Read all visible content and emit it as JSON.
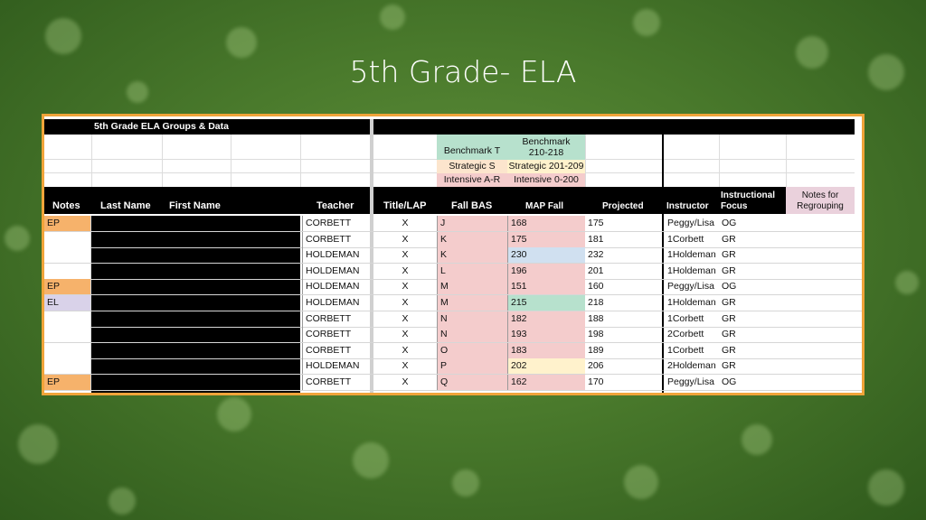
{
  "slide_title": "5th Grade- ELA",
  "sheet": {
    "banner_title": "5th Grade ELA Groups & Data",
    "legend": {
      "benchmark_label": "Benchmark T",
      "benchmark_range": "Benchmark 210-218",
      "strategic_label": "Strategic S",
      "strategic_range": "Strategic 201-209",
      "intensive_label": "Intensive A-R",
      "intensive_range": "Intensive 0-200"
    },
    "headers": {
      "notes": "Notes",
      "last_name": "Last Name",
      "first_name": "First Name",
      "teacher": "Teacher",
      "title_lap": "Title/LAP",
      "fall_bas": "Fall BAS",
      "map_fall": "MAP Fall",
      "projected": "Projected",
      "instructor": "Instructor",
      "instructional_focus": "Instructional Focus",
      "notes_regrouping": "Notes for Regrouping"
    },
    "rows": [
      {
        "notes": "EP",
        "teacher": "CORBETT",
        "title": "X",
        "bas": "J",
        "map": "168",
        "projected": "175",
        "instructor": "Peggy/Lisa",
        "focus": "OG"
      },
      {
        "notes": "",
        "teacher": "CORBETT",
        "title": "X",
        "bas": "K",
        "map": "175",
        "projected": "181",
        "instructor": "1Corbett",
        "focus": "GR"
      },
      {
        "notes": "",
        "teacher": "HOLDEMAN",
        "title": "X",
        "bas": "K",
        "map": "230",
        "projected": "232",
        "instructor": "1Holdeman",
        "focus": "GR"
      },
      {
        "notes": "",
        "teacher": "HOLDEMAN",
        "title": "X",
        "bas": "L",
        "map": "196",
        "projected": "201",
        "instructor": "1Holdeman",
        "focus": "GR"
      },
      {
        "notes": "EP",
        "teacher": "HOLDEMAN",
        "title": "X",
        "bas": "M",
        "map": "151",
        "projected": "160",
        "instructor": "Peggy/Lisa",
        "focus": "OG"
      },
      {
        "notes": "EL",
        "teacher": "HOLDEMAN",
        "title": "X",
        "bas": "M",
        "map": "215",
        "projected": "218",
        "instructor": "1Holdeman",
        "focus": "GR"
      },
      {
        "notes": "",
        "teacher": "CORBETT",
        "title": "X",
        "bas": "N",
        "map": "182",
        "projected": "188",
        "instructor": "1Corbett",
        "focus": "GR"
      },
      {
        "notes": "",
        "teacher": "CORBETT",
        "title": "X",
        "bas": "N",
        "map": "193",
        "projected": "198",
        "instructor": "2Corbett",
        "focus": "GR"
      },
      {
        "notes": "",
        "teacher": "CORBETT",
        "title": "X",
        "bas": "O",
        "map": "183",
        "projected": "189",
        "instructor": "1Corbett",
        "focus": "GR"
      },
      {
        "notes": "",
        "teacher": "HOLDEMAN",
        "title": "X",
        "bas": "P",
        "map": "202",
        "projected": "206",
        "instructor": "2Holdeman",
        "focus": "GR"
      },
      {
        "notes": "EP",
        "teacher": "CORBETT",
        "title": "X",
        "bas": "Q",
        "map": "162",
        "projected": "170",
        "instructor": "Peggy/Lisa",
        "focus": "OG"
      }
    ],
    "colors": {
      "border": "#f0a43a",
      "ep_note": "#f6b26b",
      "el_note": "#d9d2e9",
      "intensive": "#f4cccc",
      "strategic": "#fff2cc",
      "benchmark": "#d0e0f0",
      "benchmark_green": "#b7e1cd",
      "notes_regroup_header": "#ead1dc"
    }
  }
}
